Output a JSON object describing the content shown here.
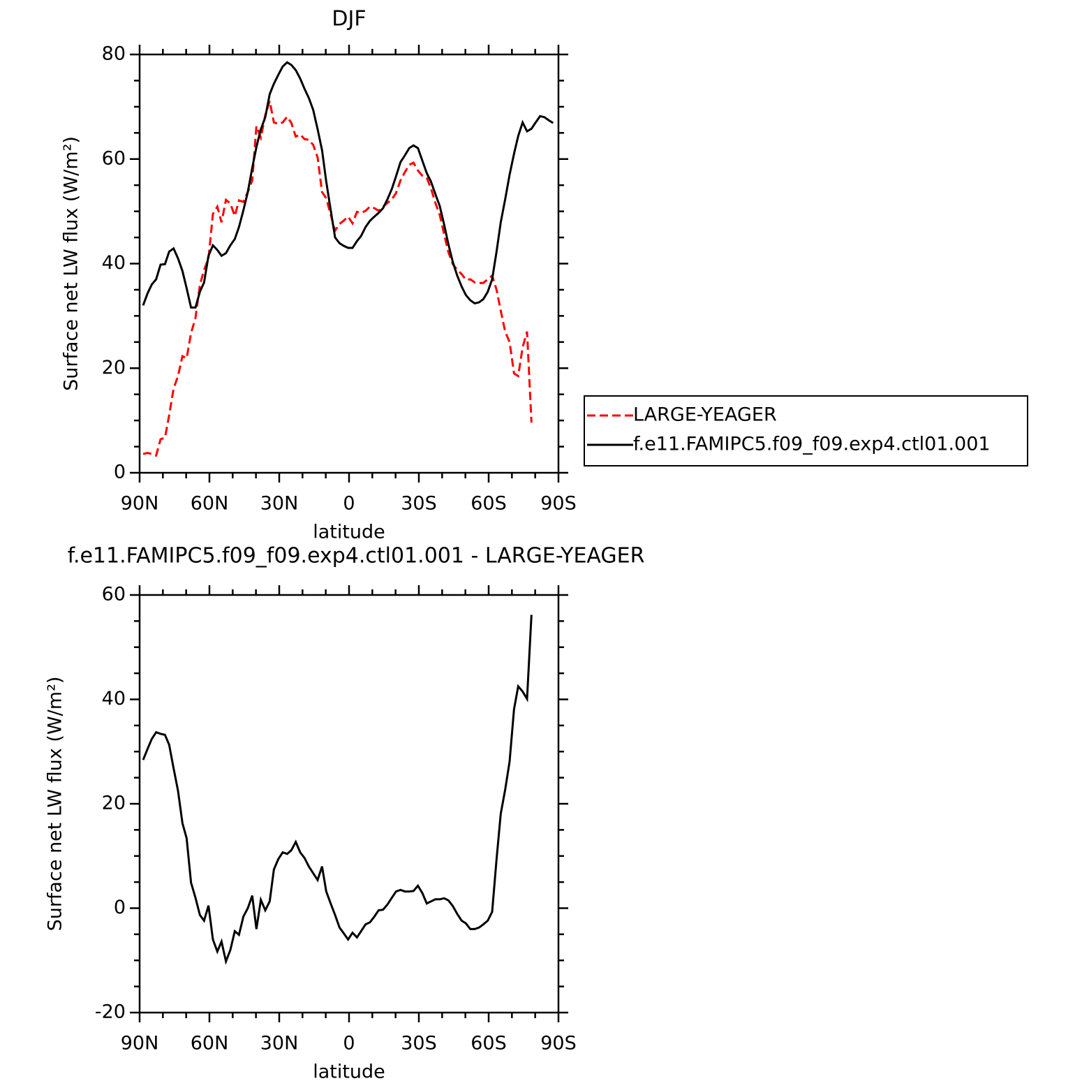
{
  "chart_data": [
    {
      "type": "line",
      "title": "DJF",
      "xlabel": "latitude",
      "ylabel": "Surface net LW flux (W/m²)",
      "x": [
        88.5,
        86.6,
        84.8,
        82.9,
        81,
        79.1,
        77.3,
        75.4,
        73.5,
        71.6,
        69.8,
        67.9,
        66,
        64.1,
        62.3,
        60.4,
        58.5,
        56.6,
        54.8,
        52.9,
        51,
        49.1,
        47.3,
        45.4,
        43.5,
        41.6,
        39.8,
        37.9,
        36,
        34.1,
        32.3,
        30.4,
        28.5,
        26.6,
        24.8,
        22.9,
        21,
        19.1,
        17.3,
        15.4,
        13.5,
        11.6,
        9.8,
        7.9,
        6,
        4.1,
        2.3,
        0.4,
        -1.5,
        -3.4,
        -5.2,
        -7.1,
        -9,
        -10.9,
        -12.7,
        -14.6,
        -16.5,
        -18.4,
        -20.2,
        -22.1,
        -24,
        -25.9,
        -27.7,
        -29.6,
        -31.5,
        -33.4,
        -35.2,
        -37.1,
        -39,
        -40.9,
        -42.7,
        -44.6,
        -46.5,
        -48.4,
        -50.2,
        -52.1,
        -54,
        -55.9,
        -57.7,
        -59.6,
        -61.5,
        -63.4,
        -65.2,
        -67.1,
        -69,
        -70.9,
        -72.7,
        -74.6,
        -76.5,
        -78.4,
        -80.2,
        -82.1,
        -84,
        -85.9,
        -87.7
      ],
      "series": [
        {
          "name": "LARGE-YEAGER",
          "color": "#ff0000",
          "dashed": true,
          "values": [
            3.6,
            3.8,
            3.6,
            3.3,
            6.4,
            6.7,
            11,
            16.1,
            18.5,
            22.3,
            21.9,
            26.7,
            29.6,
            35.9,
            38.8,
            41,
            49.5,
            50.9,
            47.9,
            52.2,
            51.5,
            49.1,
            52.1,
            51.8,
            53.7,
            55.9,
            66.3,
            64.1,
            68.4,
            71.1,
            67,
            66.7,
            67,
            68.1,
            66.9,
            64.3,
            64.7,
            63.8,
            63.7,
            62.7,
            60.3,
            53.7,
            52.5,
            49.4,
            46.3,
            47.6,
            48.2,
            49,
            47.7,
            49.9,
            49.7,
            50.1,
            50.9,
            50.6,
            50.1,
            50.9,
            51.6,
            52.3,
            53.5,
            55.9,
            57.5,
            58.9,
            59.3,
            57.8,
            56.8,
            56.4,
            54.4,
            51.6,
            49.3,
            45.5,
            42.2,
            39.9,
            38.8,
            38,
            36.9,
            37,
            36.4,
            36.3,
            36.3,
            37,
            37.7,
            35,
            31,
            27,
            25,
            19,
            18.5,
            24,
            27,
            9.6,
            null,
            null,
            null,
            null,
            null
          ]
        },
        {
          "name": "f.e11.FAMIPC5.f09_f09.exp4.ctl01.001",
          "color": "#000000",
          "dashed": false,
          "values": [
            32,
            34.3,
            36,
            37,
            39.8,
            39.9,
            42.3,
            42.9,
            41,
            38.6,
            35.3,
            31.6,
            31.6,
            34.6,
            36.4,
            41.5,
            43.5,
            42.6,
            41.5,
            42,
            43.5,
            44.7,
            47,
            50.2,
            53.7,
            58.3,
            62.3,
            65.7,
            68,
            72.4,
            74.4,
            76.1,
            77.7,
            78.5,
            78,
            77,
            75.4,
            73.4,
            71.7,
            69.4,
            65.7,
            61.7,
            55.7,
            50.3,
            45,
            43.9,
            43.4,
            43,
            43,
            44.3,
            45.3,
            47,
            48.2,
            49,
            49.7,
            50.6,
            52.3,
            54.3,
            56.7,
            59.4,
            60.7,
            62.1,
            62.6,
            62.1,
            59.7,
            57.3,
            55.7,
            53.3,
            51,
            47.4,
            43.7,
            40.3,
            37.7,
            35.6,
            34,
            33,
            32.4,
            32.6,
            33.2,
            34.6,
            37,
            42.3,
            47.9,
            52.3,
            57,
            61,
            64.4,
            67,
            65.3,
            65.8,
            67,
            68.2,
            68,
            67.4,
            66.9
          ]
        }
      ],
      "xlim": [
        90,
        -90
      ],
      "xticks": [
        {
          "value": 90,
          "label": "90N"
        },
        {
          "value": 60,
          "label": "60N"
        },
        {
          "value": 30,
          "label": "30N"
        },
        0,
        {
          "value": -30,
          "label": "30S"
        },
        {
          "value": -60,
          "label": "60S"
        },
        {
          "value": -90,
          "label": "90S"
        }
      ],
      "ylim": [
        0,
        80
      ],
      "yticks": [
        0,
        20,
        40,
        60,
        80
      ],
      "legend": "right"
    },
    {
      "type": "line",
      "title": "f.e11.FAMIPC5.f09_f09.exp4.ctl01.001 - LARGE-YEAGER",
      "xlabel": "latitude",
      "ylabel": "Surface net LW flux (W/m²)",
      "x": [
        88.5,
        86.6,
        84.8,
        82.9,
        81,
        79.1,
        77.3,
        75.4,
        73.5,
        71.6,
        69.8,
        67.9,
        66,
        64.1,
        62.3,
        60.4,
        58.5,
        56.6,
        54.8,
        52.9,
        51,
        49.1,
        47.3,
        45.4,
        43.5,
        41.6,
        39.8,
        37.9,
        36,
        34.1,
        32.3,
        30.4,
        28.5,
        26.6,
        24.8,
        22.9,
        21,
        19.1,
        17.3,
        15.4,
        13.5,
        11.6,
        9.8,
        7.9,
        6,
        4.1,
        2.3,
        0.4,
        -1.5,
        -3.4,
        -5.2,
        -7.1,
        -9,
        -10.9,
        -12.7,
        -14.6,
        -16.5,
        -18.4,
        -20.2,
        -22.1,
        -24,
        -25.9,
        -27.7,
        -29.6,
        -31.5,
        -33.4,
        -35.2,
        -37.1,
        -39,
        -40.9,
        -42.7,
        -44.6,
        -46.5,
        -48.4,
        -50.2,
        -52.1,
        -54,
        -55.9,
        -57.7,
        -59.6,
        -61.5,
        -63.4,
        -65.2,
        -67.1,
        -69,
        -70.9,
        -72.7,
        -74.6,
        -76.5,
        -78.4,
        -80.2,
        -82.1,
        -84,
        -85.9,
        -87.7
      ],
      "series": [
        {
          "color": "#000000",
          "dashed": false,
          "values": [
            28.4,
            30.5,
            32.4,
            33.7,
            33.4,
            33.2,
            31.3,
            26.8,
            22.5,
            16.3,
            13.4,
            4.9,
            2,
            -1.3,
            -2.4,
            0.5,
            -6,
            -8.3,
            -6.4,
            -10.2,
            -8,
            -4.4,
            -5.1,
            -1.6,
            0,
            2.4,
            -4,
            1.6,
            -0.4,
            1.3,
            7.4,
            9.4,
            10.7,
            10.4,
            11.1,
            12.7,
            10.7,
            9.6,
            8,
            6.7,
            5.4,
            8,
            3.2,
            0.9,
            -1.3,
            -3.7,
            -4.8,
            -6,
            -4.7,
            -5.6,
            -4.4,
            -3.1,
            -2.7,
            -1.6,
            -0.4,
            -0.3,
            0.7,
            2,
            3.2,
            3.5,
            3.2,
            3.2,
            3.3,
            4.3,
            2.9,
            0.9,
            1.3,
            1.7,
            1.7,
            1.9,
            1.5,
            0.4,
            -1.1,
            -2.4,
            -2.9,
            -4,
            -4,
            -3.7,
            -3.1,
            -2.4,
            -0.7,
            9.4,
            18.1,
            22.7,
            28.1,
            38.1,
            42.5,
            41.5,
            40.1,
            56.2,
            null,
            null,
            null,
            null,
            null
          ]
        }
      ],
      "xlim": [
        90,
        -90
      ],
      "xticks": [
        {
          "value": 90,
          "label": "90N"
        },
        {
          "value": 60,
          "label": "60N"
        },
        {
          "value": 30,
          "label": "30N"
        },
        0,
        {
          "value": -30,
          "label": "30S"
        },
        {
          "value": -60,
          "label": "60S"
        },
        {
          "value": -90,
          "label": "90S"
        }
      ],
      "ylim": [
        -20,
        60
      ],
      "yticks": [
        -20,
        0,
        20,
        40,
        60
      ]
    }
  ]
}
